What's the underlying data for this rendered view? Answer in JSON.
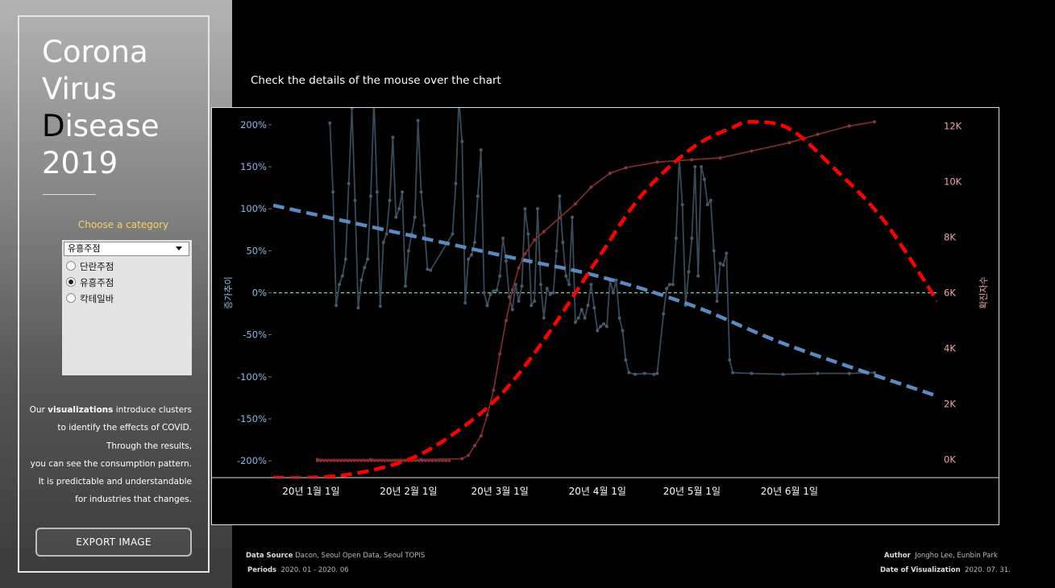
{
  "sidebar": {
    "title_lines": [
      "Corona",
      "Virus",
      "Disease",
      "2019"
    ],
    "category_label": "Choose a category",
    "dropdown_value": "유흥주점",
    "options": [
      {
        "label": "단란주점",
        "selected": false
      },
      {
        "label": "유흥주점",
        "selected": true
      },
      {
        "label": "칵테일바",
        "selected": false
      }
    ],
    "description": {
      "line1_pre": "Our ",
      "line1_bold": "visualizations",
      "line1_post": " introduce clusters",
      "line2": "to identify the effects of COVID.",
      "line3": "Through the results,",
      "line4": "you can see the consumption pattern.",
      "line5": "It is predictable and understandable",
      "line6": "for industries that changes."
    },
    "export_label": "EXPORT IMAGE"
  },
  "hint": "Check the details of the mouse over the chart",
  "footer": {
    "data_source_label": "Data Source",
    "data_source": "Dacon, Seoul Open Data, Seoul TOPIS",
    "periods_label": "Periods",
    "periods": "2020. 01 - 2020. 06",
    "author_label": "Author",
    "author": "Jongho Lee, Eunbin Park",
    "date_label": "Date of Visualization",
    "date": "2020. 07. 31."
  },
  "colors": {
    "growth_line": "#39495a",
    "growth_trend": "#5b8ac0",
    "cases_line": "#7a2a2a",
    "cases_trend": "#ff0000",
    "zero_line": "#7fd3c0",
    "left_axis": "#8fb8e6",
    "right_axis": "#f2a3a3",
    "category_label": "#f6d365"
  },
  "chart_data": {
    "type": "line",
    "x_axis": {
      "start": "2019-12-20",
      "end": "2020-07-18",
      "ticks": [
        "20년 1월 1일",
        "20년 2월 1일",
        "20년 3월 1일",
        "20년 4월 1일",
        "20년 5월 1일",
        "20년 6월 1일"
      ]
    },
    "y_left": {
      "label": "증가추이",
      "range": [
        -220,
        220
      ],
      "ticks": [
        "200%",
        "150%",
        "100%",
        "50%",
        "0%",
        "-50%",
        "-100%",
        "-150%",
        "-200%"
      ]
    },
    "y_right": {
      "label": "확진자수",
      "range": [
        -650,
        12650
      ],
      "ticks": [
        "12K",
        "10K",
        "8K",
        "6K",
        "4K",
        "2K",
        "0K"
      ]
    },
    "series": [
      {
        "axis": "left",
        "style": "line-dots",
        "points": [
          [
            "2020-01-03",
            -200
          ],
          [
            "2020-01-05",
            -200
          ],
          [
            "2020-01-10",
            -200
          ],
          [
            "2020-01-20",
            -200
          ],
          [
            "2020-01-31",
            -200
          ],
          [
            "2020-02-10",
            -200
          ],
          [
            "2020-02-14",
            -200
          ],
          [
            "2020-01-07",
            202
          ],
          [
            "2020-01-08",
            120
          ],
          [
            "2020-01-09",
            -15
          ],
          [
            "2020-01-10",
            10
          ],
          [
            "2020-01-11",
            20
          ],
          [
            "2020-01-12",
            40
          ],
          [
            "2020-01-13",
            130
          ],
          [
            "2020-01-14",
            220
          ],
          [
            "2020-01-15",
            110
          ],
          [
            "2020-01-16",
            -18
          ],
          [
            "2020-01-17",
            15
          ],
          [
            "2020-01-18",
            30
          ],
          [
            "2020-01-19",
            40
          ],
          [
            "2020-01-20",
            115
          ],
          [
            "2020-01-21",
            230
          ],
          [
            "2020-01-22",
            120
          ],
          [
            "2020-01-23",
            -16
          ],
          [
            "2020-01-24",
            60
          ],
          [
            "2020-01-25",
            70
          ],
          [
            "2020-01-26",
            110
          ],
          [
            "2020-01-27",
            185
          ],
          [
            "2020-01-28",
            90
          ],
          [
            "2020-01-29",
            100
          ],
          [
            "2020-01-30",
            120
          ],
          [
            "2020-01-31",
            8
          ],
          [
            "2020-02-01",
            50
          ],
          [
            "2020-02-02",
            70
          ],
          [
            "2020-02-03",
            90
          ],
          [
            "2020-02-04",
            205
          ],
          [
            "2020-02-05",
            120
          ],
          [
            "2020-02-06",
            80
          ],
          [
            "2020-02-07",
            28
          ],
          [
            "2020-02-08",
            27
          ],
          [
            "2020-02-15",
            70
          ],
          [
            "2020-02-16",
            130
          ],
          [
            "2020-02-17",
            230
          ],
          [
            "2020-02-18",
            180
          ],
          [
            "2020-02-19",
            -12
          ],
          [
            "2020-02-20",
            40
          ],
          [
            "2020-02-21",
            45
          ],
          [
            "2020-02-22",
            60
          ],
          [
            "2020-02-23",
            115
          ],
          [
            "2020-02-24",
            170
          ],
          [
            "2020-02-25",
            0
          ],
          [
            "2020-02-26",
            -15
          ],
          [
            "2020-02-27",
            -2
          ],
          [
            "2020-02-28",
            2
          ],
          [
            "2020-02-29",
            3
          ],
          [
            "2020-03-01",
            20
          ],
          [
            "2020-03-02",
            65
          ],
          [
            "2020-03-03",
            38
          ],
          [
            "2020-03-04",
            -5
          ],
          [
            "2020-03-05",
            -20
          ],
          [
            "2020-03-06",
            10
          ],
          [
            "2020-03-07",
            -10
          ],
          [
            "2020-03-08",
            8
          ],
          [
            "2020-03-09",
            100
          ],
          [
            "2020-03-10",
            70
          ],
          [
            "2020-03-11",
            -15
          ],
          [
            "2020-03-12",
            -10
          ],
          [
            "2020-03-13",
            100
          ],
          [
            "2020-03-14",
            10
          ],
          [
            "2020-03-15",
            -30
          ],
          [
            "2020-03-16",
            5
          ],
          [
            "2020-03-17",
            -2
          ],
          [
            "2020-03-18",
            0
          ],
          [
            "2020-03-19",
            50
          ],
          [
            "2020-03-20",
            115
          ],
          [
            "2020-03-21",
            60
          ],
          [
            "2020-03-22",
            20
          ],
          [
            "2020-03-23",
            10
          ],
          [
            "2020-03-24",
            90
          ],
          [
            "2020-03-25",
            -35
          ],
          [
            "2020-03-26",
            -30
          ],
          [
            "2020-03-27",
            -20
          ],
          [
            "2020-03-28",
            -30
          ],
          [
            "2020-03-29",
            -15
          ],
          [
            "2020-03-30",
            10
          ],
          [
            "2020-03-31",
            -18
          ],
          [
            "2020-04-01",
            -45
          ],
          [
            "2020-04-02",
            -40
          ],
          [
            "2020-04-03",
            -37
          ],
          [
            "2020-04-04",
            -40
          ],
          [
            "2020-04-05",
            15
          ],
          [
            "2020-04-06",
            0
          ],
          [
            "2020-04-07",
            15
          ],
          [
            "2020-04-08",
            -30
          ],
          [
            "2020-04-09",
            -45
          ],
          [
            "2020-04-10",
            -80
          ],
          [
            "2020-04-11",
            -95
          ],
          [
            "2020-04-13",
            -97
          ],
          [
            "2020-04-16",
            -96
          ],
          [
            "2020-04-19",
            -97
          ],
          [
            "2020-04-20",
            -96
          ],
          [
            "2020-04-22",
            -25
          ],
          [
            "2020-04-23",
            5
          ],
          [
            "2020-04-24",
            10
          ],
          [
            "2020-04-25",
            10
          ],
          [
            "2020-04-26",
            65
          ],
          [
            "2020-04-27",
            160
          ],
          [
            "2020-04-28",
            105
          ],
          [
            "2020-04-29",
            -15
          ],
          [
            "2020-04-30",
            25
          ],
          [
            "2020-05-01",
            65
          ],
          [
            "2020-05-02",
            150
          ],
          [
            "2020-05-03",
            20
          ],
          [
            "2020-05-04",
            150
          ],
          [
            "2020-05-05",
            135
          ],
          [
            "2020-05-06",
            105
          ],
          [
            "2020-05-07",
            110
          ],
          [
            "2020-05-08",
            50
          ],
          [
            "2020-05-09",
            -10
          ],
          [
            "2020-05-10",
            35
          ],
          [
            "2020-05-11",
            33
          ],
          [
            "2020-05-12",
            47
          ],
          [
            "2020-05-13",
            -80
          ],
          [
            "2020-05-14",
            -95
          ],
          [
            "2020-05-20",
            -96
          ],
          [
            "2020-05-30",
            -97
          ],
          [
            "2020-06-10",
            -96
          ],
          [
            "2020-06-20",
            -96
          ],
          [
            "2020-06-28",
            -95
          ]
        ]
      },
      {
        "axis": "left",
        "style": "trend",
        "points": [
          [
            "2019-12-20",
            104
          ],
          [
            "2020-03-01",
            45
          ],
          [
            "2020-04-01",
            20
          ],
          [
            "2020-05-01",
            -15
          ],
          [
            "2020-06-01",
            -63
          ],
          [
            "2020-07-18",
            -123
          ]
        ]
      },
      {
        "axis": "right",
        "style": "line-dots",
        "points": [
          [
            "2020-01-03",
            0
          ],
          [
            "2020-01-20",
            0
          ],
          [
            "2020-02-05",
            0
          ],
          [
            "2020-02-18",
            30
          ],
          [
            "2020-02-20",
            150
          ],
          [
            "2020-02-22",
            500
          ],
          [
            "2020-02-24",
            850
          ],
          [
            "2020-02-26",
            1600
          ],
          [
            "2020-02-28",
            2500
          ],
          [
            "2020-03-01",
            3800
          ],
          [
            "2020-03-03",
            5000
          ],
          [
            "2020-03-05",
            6100
          ],
          [
            "2020-03-07",
            6900
          ],
          [
            "2020-03-09",
            7400
          ],
          [
            "2020-03-12",
            7900
          ],
          [
            "2020-03-15",
            8200
          ],
          [
            "2020-03-20",
            8700
          ],
          [
            "2020-03-25",
            9200
          ],
          [
            "2020-03-30",
            9800
          ],
          [
            "2020-04-05",
            10300
          ],
          [
            "2020-04-10",
            10500
          ],
          [
            "2020-04-20",
            10700
          ],
          [
            "2020-05-01",
            10790
          ],
          [
            "2020-05-10",
            10850
          ],
          [
            "2020-05-20",
            11100
          ],
          [
            "2020-06-01",
            11400
          ],
          [
            "2020-06-10",
            11700
          ],
          [
            "2020-06-20",
            12000
          ],
          [
            "2020-06-28",
            12150
          ]
        ]
      },
      {
        "axis": "right",
        "style": "trend",
        "points": [
          [
            "2019-12-20",
            -650
          ],
          [
            "2020-01-01",
            -650
          ],
          [
            "2020-01-15",
            -500
          ],
          [
            "2020-02-01",
            0
          ],
          [
            "2020-02-15",
            900
          ],
          [
            "2020-03-01",
            2300
          ],
          [
            "2020-03-15",
            4300
          ],
          [
            "2020-04-01",
            7200
          ],
          [
            "2020-04-15",
            9500
          ],
          [
            "2020-05-01",
            11200
          ],
          [
            "2020-05-14",
            11950
          ],
          [
            "2020-05-20",
            12150
          ],
          [
            "2020-06-01",
            11900
          ],
          [
            "2020-06-15",
            10500
          ],
          [
            "2020-07-01",
            8600
          ],
          [
            "2020-07-18",
            5700
          ]
        ]
      }
    ]
  }
}
